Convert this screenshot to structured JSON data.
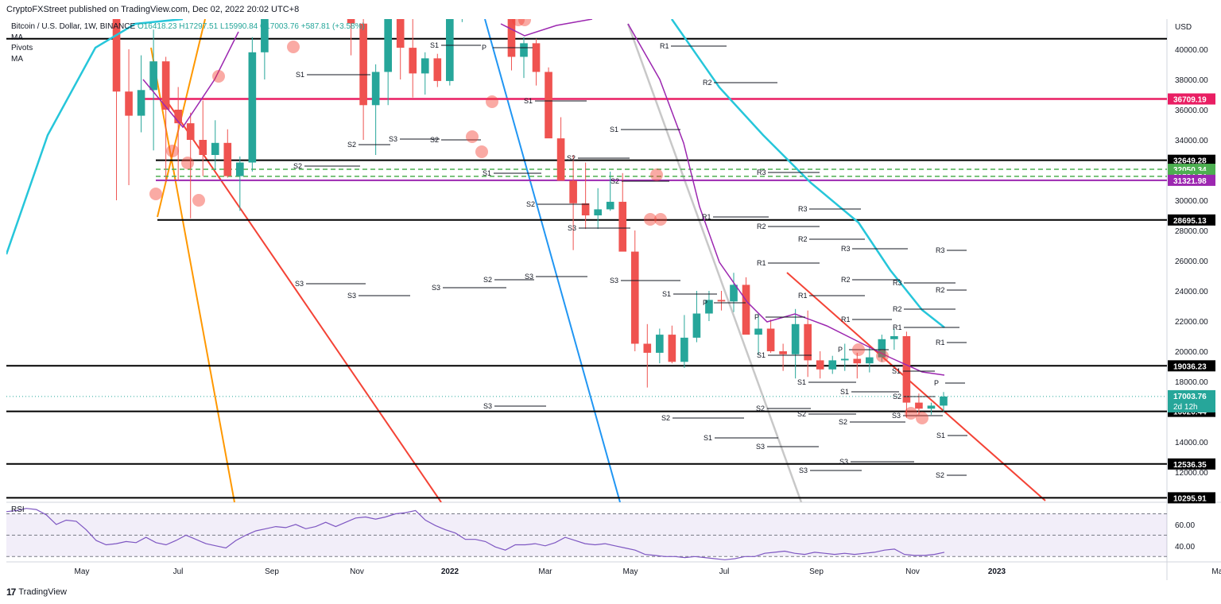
{
  "header": {
    "publisher": "CryptoFXStreet published on TradingView.com, Dec 02, 2022 20:02 UTC+8"
  },
  "legend": {
    "symbol": "Bitcoin / U.S. Dollar, 1W, BINANCE",
    "open": "O16418.23",
    "high": "H17297.51",
    "low": "L15990.84",
    "close": "C17003.76",
    "change": "+587.81 (+3.58%)",
    "indicators": [
      "MA",
      "Pivots",
      "MA"
    ]
  },
  "footer": {
    "brand": "TradingView"
  },
  "chart_data": [
    {
      "type": "candlestick",
      "title": "Bitcoin / U.S. Dollar, 1W, BINANCE",
      "currency": "USD",
      "ylim": [
        10000,
        42000
      ],
      "x_tick_labels": [
        "May",
        "Jul",
        "Sep",
        "Nov",
        "2022",
        "Mar",
        "May",
        "Jul",
        "Sep",
        "Nov",
        "2023",
        "Mar"
      ],
      "y_tick_labels": [
        "12000.00",
        "14000.00",
        "16000.00",
        "18000.00",
        "20000.00",
        "22000.00",
        "24000.00",
        "26000.00",
        "28000.00",
        "30000.00",
        "32000.00",
        "34000.00",
        "36000.00",
        "38000.00",
        "40000.00"
      ],
      "y_ticks": [
        12000,
        14000,
        16000,
        18000,
        20000,
        22000,
        24000,
        26000,
        28000,
        30000,
        32000,
        34000,
        36000,
        38000,
        40000
      ],
      "last_price": {
        "value": 17003.76,
        "label": "17003.76",
        "countdown": "2d 12h",
        "color": "#26a69a"
      },
      "levels": [
        {
          "value": 40700,
          "label": "",
          "color": "#000000",
          "style": "solid"
        },
        {
          "value": 36709.19,
          "label": "36709.19",
          "color": "#e91e63",
          "style": "solid"
        },
        {
          "value": 32649.28,
          "label": "32649.28",
          "color": "#000000",
          "style": "solid"
        },
        {
          "value": 32050.34,
          "label": "32050.34",
          "color": "#4caf50",
          "style": "dashed"
        },
        {
          "value": 31584.74,
          "label": "31584.74",
          "color": "#4caf50",
          "style": "dashed"
        },
        {
          "value": 31321.98,
          "label": "31321.98",
          "color": "#9c27b0",
          "style": "solid"
        },
        {
          "value": 28695.13,
          "label": "28695.13",
          "color": "#000000",
          "style": "solid"
        },
        {
          "value": 19036.23,
          "label": "19036.23",
          "color": "#000000",
          "style": "solid"
        },
        {
          "value": 16020.44,
          "label": "16020.44",
          "color": "#000000",
          "style": "solid"
        },
        {
          "value": 12536.35,
          "label": "12536.35",
          "color": "#000000",
          "style": "solid"
        },
        {
          "value": 10295.91,
          "label": "10295.91",
          "color": "#000000",
          "style": "solid"
        }
      ],
      "candles_ohlc": [
        [
          57000,
          58800,
          47000,
          49500
        ],
        [
          49500,
          50600,
          30000,
          37200
        ],
        [
          37200,
          40000,
          31000,
          35600
        ],
        [
          35600,
          39600,
          34500,
          37300
        ],
        [
          37300,
          41300,
          33300,
          39200
        ],
        [
          39200,
          39500,
          31200,
          36000
        ],
        [
          36000,
          37500,
          31300,
          35100
        ],
        [
          35100,
          35800,
          28800,
          34000
        ],
        [
          34000,
          36600,
          31600,
          33000
        ],
        [
          33000,
          35300,
          32000,
          33800
        ],
        [
          33800,
          34700,
          31500,
          31600
        ],
        [
          31600,
          32900,
          29300,
          32500
        ],
        [
          32500,
          40800,
          31900,
          39800
        ],
        [
          39800,
          48000,
          38000,
          47000
        ],
        [
          47000,
          49600,
          42500,
          45500
        ],
        [
          46500,
          48500,
          42800,
          47700
        ],
        [
          47700,
          48000,
          46000,
          46300
        ],
        [
          46300,
          52900,
          45800,
          51200
        ],
        [
          51200,
          52500,
          47400,
          48200
        ],
        [
          49500,
          50000,
          46300,
          47000
        ],
        [
          47000,
          48600,
          39600,
          41700
        ],
        [
          41700,
          44300,
          34000,
          36300
        ],
        [
          36300,
          39000,
          33000,
          38500
        ],
        [
          38500,
          44400,
          36300,
          42000
        ],
        [
          42000,
          44400,
          38000,
          40100
        ],
        [
          40100,
          43900,
          36800,
          38400
        ],
        [
          38400,
          39800,
          37000,
          39400
        ],
        [
          39400,
          39700,
          37500,
          37900
        ],
        [
          37900,
          42400,
          37600,
          42200
        ],
        [
          42200,
          46700,
          41800,
          46200
        ],
        [
          46200,
          48100,
          45300,
          47200
        ],
        [
          47200,
          48100,
          44000,
          45600
        ],
        [
          45600,
          45800,
          42100,
          42400
        ],
        [
          42400,
          42800,
          38600,
          39500
        ],
        [
          39500,
          40800,
          38100,
          40400
        ],
        [
          40400,
          40700,
          37600,
          38500
        ],
        [
          38500,
          38800,
          34700,
          34100
        ],
        [
          34100,
          35500,
          33700,
          31300
        ],
        [
          31300,
          33000,
          26700,
          29800
        ],
        [
          29800,
          32500,
          28100,
          29000
        ],
        [
          29000,
          30800,
          28100,
          29400
        ],
        [
          29400,
          31900,
          29300,
          29900
        ],
        [
          29900,
          31800,
          29000,
          26600
        ],
        [
          26600,
          28000,
          20000,
          20500
        ],
        [
          20500,
          21800,
          17600,
          19900
        ],
        [
          19900,
          21500,
          19200,
          21100
        ],
        [
          21100,
          21700,
          19200,
          19300
        ],
        [
          19300,
          22400,
          18900,
          20900
        ],
        [
          20900,
          24000,
          20600,
          22500
        ],
        [
          22500,
          24000,
          22000,
          23400
        ],
        [
          23400,
          24000,
          22700,
          23300
        ],
        [
          23300,
          25200,
          22600,
          24400
        ],
        [
          24400,
          24900,
          21200,
          21100
        ],
        [
          21100,
          22500,
          19800,
          21500
        ],
        [
          21500,
          22100,
          19900,
          20000
        ],
        [
          20000,
          20500,
          18700,
          19800
        ],
        [
          19800,
          22800,
          18200,
          21800
        ],
        [
          21800,
          22700,
          18300,
          19400
        ],
        [
          19400,
          20000,
          18200,
          18800
        ],
        [
          18800,
          19700,
          18500,
          19400
        ],
        [
          19400,
          20500,
          18700,
          19500
        ],
        [
          19500,
          19900,
          18200,
          19200
        ],
        [
          19200,
          20300,
          18600,
          19600
        ],
        [
          19600,
          21100,
          19300,
          20800
        ],
        [
          20800,
          21500,
          20100,
          21000
        ],
        [
          21000,
          21300,
          15600,
          16600
        ],
        [
          16600,
          17200,
          15800,
          16200
        ],
        [
          16200,
          16600,
          15800,
          16400
        ],
        [
          16400,
          17300,
          15990,
          17004
        ]
      ],
      "pivot_labels": [
        "S1",
        "S2",
        "S3",
        "R1",
        "R2",
        "R3",
        "P"
      ],
      "trendlines": [
        {
          "color": "#2196f3"
        },
        {
          "color": "#ff9800"
        },
        {
          "color": "#f44336"
        },
        {
          "color": "#c8c8c8"
        }
      ],
      "moving_averages": [
        {
          "name": "MA",
          "color": "#26c6da"
        },
        {
          "name": "MA",
          "color": "#9c27b0"
        }
      ]
    },
    {
      "type": "line",
      "title": "RSI",
      "y_tick_labels": [
        "60.00",
        "40.00"
      ],
      "y_ticks": [
        60,
        40
      ],
      "bands": [
        70,
        50,
        30
      ],
      "ylim": [
        25,
        80
      ],
      "values": [
        72,
        73,
        75,
        74,
        69,
        60,
        64,
        63,
        55,
        45,
        41,
        42,
        44,
        43,
        48,
        43,
        41,
        45,
        50,
        46,
        42,
        40,
        38,
        45,
        50,
        54,
        56,
        58,
        57,
        60,
        56,
        58,
        62,
        58,
        62,
        66,
        67,
        65,
        67,
        70,
        71,
        73,
        64,
        59,
        55,
        52,
        46,
        46,
        44,
        39,
        36,
        41,
        41,
        42,
        40,
        43,
        48,
        45,
        42,
        41,
        42,
        40,
        38,
        36,
        32,
        31,
        30,
        30,
        29,
        30,
        29,
        28,
        27,
        28,
        30,
        30,
        33,
        34,
        35,
        33,
        32,
        34,
        33,
        32,
        33,
        32,
        33,
        34,
        36,
        37,
        32,
        31,
        31,
        32,
        34
      ]
    }
  ]
}
